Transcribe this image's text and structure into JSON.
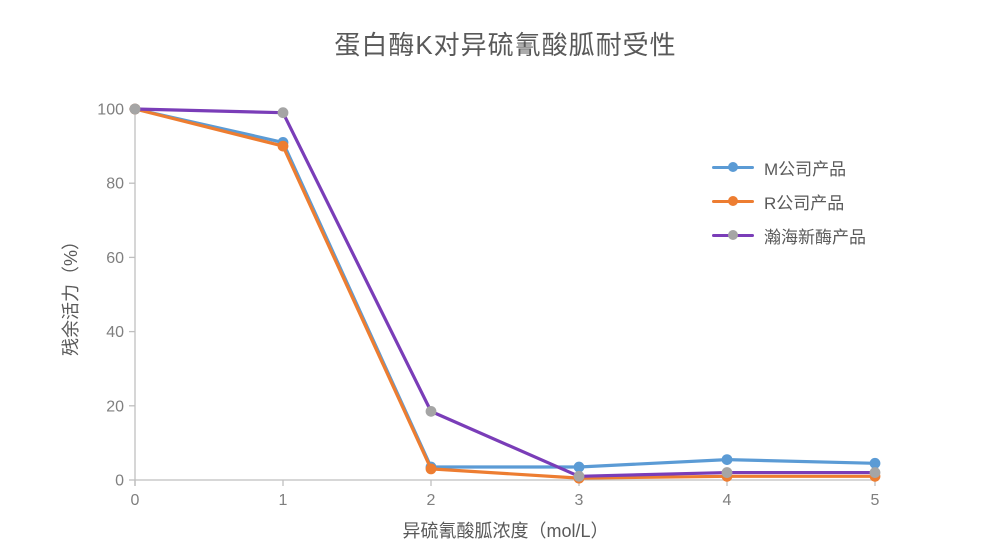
{
  "chart_data": {
    "type": "line",
    "title": "蛋白酶K对异硫氰酸胍耐受性",
    "xlabel": "异硫氰酸胍浓度（mol/L）",
    "ylabel": "残余活力（%）",
    "x": [
      0,
      1,
      2,
      3,
      4,
      5
    ],
    "xtick_labels": [
      "0",
      "1",
      "2",
      "3",
      "4",
      "5"
    ],
    "yticks": [
      0,
      20,
      40,
      60,
      80,
      100
    ],
    "xlim": [
      0,
      5
    ],
    "ylim": [
      0,
      100
    ],
    "grid": false,
    "legend_position": "right",
    "series": [
      {
        "name": "M公司产品",
        "values": [
          100,
          91,
          3.5,
          3.5,
          5.5,
          4.5
        ],
        "line_color": "#5B9BD5",
        "marker_color": "#5B9BD5"
      },
      {
        "name": "R公司产品",
        "values": [
          100,
          90,
          3.0,
          0.5,
          1.0,
          1.0
        ],
        "line_color": "#ED7D31",
        "marker_color": "#ED7D31"
      },
      {
        "name": "瀚海新酶产品",
        "values": [
          100,
          99,
          18.5,
          1.0,
          2.0,
          2.0
        ],
        "line_color": "#7A3DB8",
        "marker_color": "#A5A5A5"
      }
    ]
  },
  "colors": {
    "title_text": "#595959",
    "axis_label_text": "#595959",
    "tick_text": "#7F7F7F",
    "axis_line": "#BFBFBF",
    "background": "#FFFFFF"
  }
}
